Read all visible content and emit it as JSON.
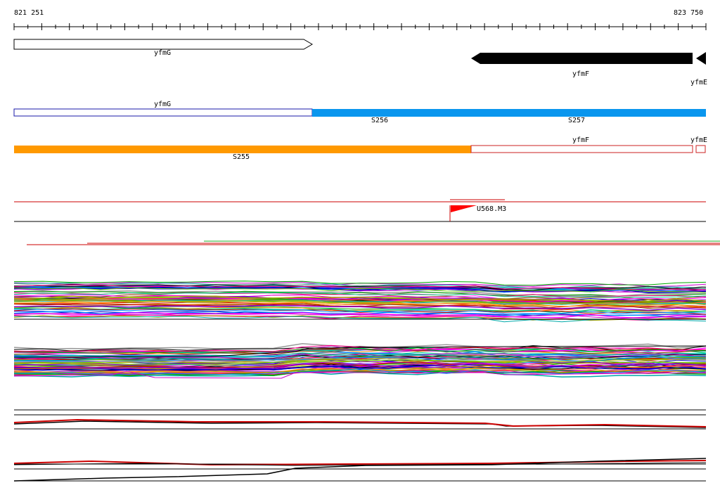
{
  "ruler": {
    "start": "821 251",
    "end": "823 750"
  },
  "genes": [
    {
      "name": "yfmG",
      "strand": "+"
    },
    {
      "name": "yfmF",
      "strand": "-"
    },
    {
      "name": "yfmE",
      "strand": "-"
    }
  ],
  "segments_top": [
    {
      "label": "yfmG",
      "style": "outline",
      "color": "#1a1aa8"
    },
    {
      "label": "S256",
      "style": "filled",
      "color": "#0a96ee"
    },
    {
      "label": "S257",
      "style": "filled",
      "color": "#0a96ee"
    }
  ],
  "segments_bottom": [
    {
      "label": "S255",
      "style": "filled",
      "color": "#ff9900"
    },
    {
      "label": "yfmF",
      "style": "outline",
      "color": "#cc2222"
    },
    {
      "label": "yfmE",
      "style": "outline",
      "color": "#cc2222"
    }
  ],
  "feature": {
    "label": "U568.M3",
    "color": "#ff0000"
  },
  "colors": {
    "red": "#cc0000",
    "black": "#000000",
    "green": "#22aa22",
    "track_palette": [
      "#000000",
      "#cc0000",
      "#0000cc",
      "#00aa00",
      "#cc00cc",
      "#00aaaa",
      "#ff8800",
      "#8800cc",
      "#aaaa00",
      "#0088ff",
      "#ff0088",
      "#66cc00",
      "#884400",
      "#ff00ff",
      "#00cc88",
      "#999999"
    ]
  }
}
